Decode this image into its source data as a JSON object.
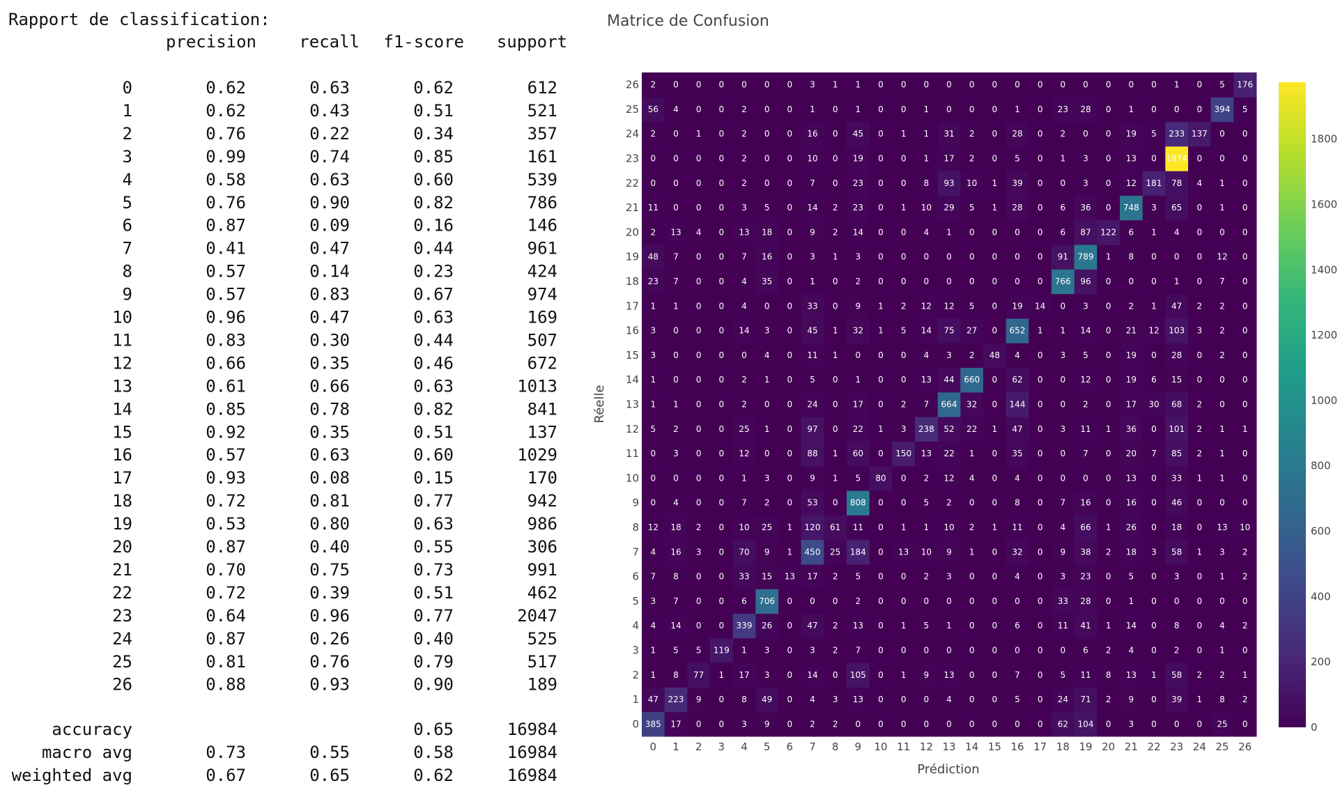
{
  "report": {
    "title": "Rapport de classification:",
    "columns": [
      "precision",
      "recall",
      "f1-score",
      "support"
    ],
    "rows": [
      [
        "0",
        "0.62",
        "0.63",
        "0.62",
        "612"
      ],
      [
        "1",
        "0.62",
        "0.43",
        "0.51",
        "521"
      ],
      [
        "2",
        "0.76",
        "0.22",
        "0.34",
        "357"
      ],
      [
        "3",
        "0.99",
        "0.74",
        "0.85",
        "161"
      ],
      [
        "4",
        "0.58",
        "0.63",
        "0.60",
        "539"
      ],
      [
        "5",
        "0.76",
        "0.90",
        "0.82",
        "786"
      ],
      [
        "6",
        "0.87",
        "0.09",
        "0.16",
        "146"
      ],
      [
        "7",
        "0.41",
        "0.47",
        "0.44",
        "961"
      ],
      [
        "8",
        "0.57",
        "0.14",
        "0.23",
        "424"
      ],
      [
        "9",
        "0.57",
        "0.83",
        "0.67",
        "974"
      ],
      [
        "10",
        "0.96",
        "0.47",
        "0.63",
        "169"
      ],
      [
        "11",
        "0.83",
        "0.30",
        "0.44",
        "507"
      ],
      [
        "12",
        "0.66",
        "0.35",
        "0.46",
        "672"
      ],
      [
        "13",
        "0.61",
        "0.66",
        "0.63",
        "1013"
      ],
      [
        "14",
        "0.85",
        "0.78",
        "0.82",
        "841"
      ],
      [
        "15",
        "0.92",
        "0.35",
        "0.51",
        "137"
      ],
      [
        "16",
        "0.57",
        "0.63",
        "0.60",
        "1029"
      ],
      [
        "17",
        "0.93",
        "0.08",
        "0.15",
        "170"
      ],
      [
        "18",
        "0.72",
        "0.81",
        "0.77",
        "942"
      ],
      [
        "19",
        "0.53",
        "0.80",
        "0.63",
        "986"
      ],
      [
        "20",
        "0.87",
        "0.40",
        "0.55",
        "306"
      ],
      [
        "21",
        "0.70",
        "0.75",
        "0.73",
        "991"
      ],
      [
        "22",
        "0.72",
        "0.39",
        "0.51",
        "462"
      ],
      [
        "23",
        "0.64",
        "0.96",
        "0.77",
        "2047"
      ],
      [
        "24",
        "0.87",
        "0.26",
        "0.40",
        "525"
      ],
      [
        "25",
        "0.81",
        "0.76",
        "0.79",
        "517"
      ],
      [
        "26",
        "0.88",
        "0.93",
        "0.90",
        "189"
      ]
    ],
    "summary": [
      [
        "accuracy",
        null,
        null,
        "0.65",
        "16984"
      ],
      [
        "macro avg",
        "0.73",
        "0.55",
        "0.58",
        "16984"
      ],
      [
        "weighted avg",
        "0.67",
        "0.65",
        "0.62",
        "16984"
      ]
    ]
  },
  "chart_data": {
    "type": "heatmap",
    "title": "Matrice de Confusion",
    "xlabel": "Prédiction",
    "ylabel": "Réelle",
    "x": [
      0,
      1,
      2,
      3,
      4,
      5,
      6,
      7,
      8,
      9,
      10,
      11,
      12,
      13,
      14,
      15,
      16,
      17,
      18,
      19,
      20,
      21,
      22,
      23,
      24,
      25,
      26
    ],
    "y": [
      0,
      1,
      2,
      3,
      4,
      5,
      6,
      7,
      8,
      9,
      10,
      11,
      12,
      13,
      14,
      15,
      16,
      17,
      18,
      19,
      20,
      21,
      22,
      23,
      24,
      25,
      26
    ],
    "z": [
      [
        385,
        17,
        0,
        0,
        3,
        9,
        0,
        2,
        2,
        0,
        0,
        0,
        0,
        0,
        0,
        0,
        0,
        0,
        62,
        104,
        0,
        3,
        0,
        0,
        0,
        25,
        0
      ],
      [
        47,
        223,
        9,
        0,
        8,
        49,
        0,
        4,
        3,
        13,
        0,
        0,
        0,
        4,
        0,
        0,
        5,
        0,
        24,
        71,
        2,
        9,
        0,
        39,
        1,
        8,
        2
      ],
      [
        1,
        8,
        77,
        1,
        17,
        3,
        0,
        14,
        0,
        105,
        0,
        1,
        9,
        13,
        0,
        0,
        7,
        0,
        5,
        11,
        8,
        13,
        1,
        58,
        2,
        2,
        1
      ],
      [
        1,
        5,
        5,
        119,
        1,
        3,
        0,
        3,
        2,
        7,
        0,
        0,
        0,
        0,
        0,
        0,
        0,
        0,
        0,
        6,
        2,
        4,
        0,
        2,
        0,
        1,
        0
      ],
      [
        4,
        14,
        0,
        0,
        339,
        26,
        0,
        47,
        2,
        13,
        0,
        1,
        5,
        1,
        0,
        0,
        6,
        0,
        11,
        41,
        1,
        14,
        0,
        8,
        0,
        4,
        2
      ],
      [
        3,
        7,
        0,
        0,
        6,
        706,
        0,
        0,
        0,
        2,
        0,
        0,
        0,
        0,
        0,
        0,
        0,
        0,
        33,
        28,
        0,
        1,
        0,
        0,
        0,
        0,
        0
      ],
      [
        7,
        8,
        0,
        0,
        33,
        15,
        13,
        17,
        2,
        5,
        0,
        0,
        2,
        3,
        0,
        0,
        4,
        0,
        3,
        23,
        0,
        5,
        0,
        3,
        0,
        1,
        2
      ],
      [
        4,
        16,
        3,
        0,
        70,
        9,
        1,
        450,
        25,
        184,
        0,
        13,
        10,
        9,
        1,
        0,
        32,
        0,
        9,
        38,
        2,
        18,
        3,
        58,
        1,
        3,
        2
      ],
      [
        12,
        18,
        2,
        0,
        10,
        25,
        1,
        120,
        61,
        11,
        0,
        1,
        1,
        10,
        2,
        1,
        11,
        0,
        4,
        66,
        1,
        26,
        0,
        18,
        0,
        13,
        10
      ],
      [
        0,
        4,
        0,
        0,
        7,
        2,
        0,
        53,
        0,
        808,
        0,
        0,
        5,
        2,
        0,
        0,
        8,
        0,
        7,
        16,
        0,
        16,
        0,
        46,
        0,
        0,
        0
      ],
      [
        0,
        0,
        0,
        0,
        1,
        3,
        0,
        9,
        1,
        5,
        80,
        0,
        2,
        12,
        4,
        0,
        4,
        0,
        0,
        0,
        0,
        13,
        0,
        33,
        1,
        1,
        0
      ],
      [
        0,
        3,
        0,
        0,
        12,
        0,
        0,
        88,
        1,
        60,
        0,
        150,
        13,
        22,
        1,
        0,
        35,
        0,
        0,
        7,
        0,
        20,
        7,
        85,
        2,
        1,
        0
      ],
      [
        5,
        2,
        0,
        0,
        25,
        1,
        0,
        97,
        0,
        22,
        1,
        3,
        238,
        52,
        22,
        1,
        47,
        0,
        3,
        11,
        1,
        36,
        0,
        101,
        2,
        1,
        1
      ],
      [
        1,
        1,
        0,
        0,
        2,
        0,
        0,
        24,
        0,
        17,
        0,
        2,
        7,
        664,
        32,
        0,
        144,
        0,
        0,
        2,
        0,
        17,
        30,
        68,
        2,
        0,
        0
      ],
      [
        1,
        0,
        0,
        0,
        2,
        1,
        0,
        5,
        0,
        1,
        0,
        0,
        13,
        44,
        660,
        0,
        62,
        0,
        0,
        12,
        0,
        19,
        6,
        15,
        0,
        0,
        0
      ],
      [
        3,
        0,
        0,
        0,
        0,
        4,
        0,
        11,
        1,
        0,
        0,
        0,
        4,
        3,
        2,
        48,
        4,
        0,
        3,
        5,
        0,
        19,
        0,
        28,
        0,
        2,
        0
      ],
      [
        3,
        0,
        0,
        0,
        14,
        3,
        0,
        45,
        1,
        32,
        1,
        5,
        14,
        75,
        27,
        0,
        652,
        1,
        1,
        14,
        0,
        21,
        12,
        103,
        3,
        2,
        0
      ],
      [
        1,
        1,
        0,
        0,
        4,
        0,
        0,
        33,
        0,
        9,
        1,
        2,
        12,
        12,
        5,
        0,
        19,
        14,
        0,
        3,
        0,
        2,
        1,
        47,
        2,
        2,
        0
      ],
      [
        23,
        7,
        0,
        0,
        4,
        35,
        0,
        1,
        0,
        2,
        0,
        0,
        0,
        0,
        0,
        0,
        0,
        0,
        766,
        96,
        0,
        0,
        0,
        1,
        0,
        7,
        0
      ],
      [
        48,
        7,
        0,
        0,
        7,
        16,
        0,
        3,
        1,
        3,
        0,
        0,
        0,
        0,
        0,
        0,
        0,
        0,
        91,
        789,
        1,
        8,
        0,
        0,
        0,
        12,
        0
      ],
      [
        2,
        13,
        4,
        0,
        13,
        18,
        0,
        9,
        2,
        14,
        0,
        0,
        4,
        1,
        0,
        0,
        0,
        0,
        6,
        87,
        122,
        6,
        1,
        4,
        0,
        0,
        0
      ],
      [
        11,
        0,
        0,
        0,
        3,
        5,
        0,
        14,
        2,
        23,
        0,
        1,
        10,
        29,
        5,
        1,
        28,
        0,
        6,
        36,
        0,
        748,
        3,
        65,
        0,
        1,
        0
      ],
      [
        0,
        0,
        0,
        0,
        2,
        0,
        0,
        7,
        0,
        23,
        0,
        0,
        8,
        93,
        10,
        1,
        39,
        0,
        0,
        3,
        0,
        12,
        181,
        78,
        4,
        1,
        0
      ],
      [
        0,
        0,
        0,
        0,
        2,
        0,
        0,
        10,
        0,
        19,
        0,
        0,
        1,
        17,
        2,
        0,
        5,
        0,
        1,
        3,
        0,
        13,
        0,
        1974,
        0,
        0,
        0
      ],
      [
        2,
        0,
        1,
        0,
        2,
        0,
        0,
        16,
        0,
        45,
        0,
        1,
        1,
        31,
        2,
        0,
        28,
        0,
        2,
        0,
        0,
        19,
        5,
        233,
        137,
        0,
        0
      ],
      [
        56,
        4,
        0,
        0,
        2,
        0,
        0,
        1,
        0,
        1,
        0,
        0,
        1,
        0,
        0,
        0,
        1,
        0,
        23,
        28,
        0,
        1,
        0,
        0,
        0,
        394,
        5
      ],
      [
        2,
        0,
        0,
        0,
        0,
        0,
        0,
        3,
        1,
        1,
        0,
        0,
        0,
        0,
        0,
        0,
        0,
        0,
        0,
        0,
        0,
        0,
        0,
        1,
        0,
        5,
        176
      ]
    ],
    "zlim": [
      0,
      1974
    ],
    "colorbar_ticks": [
      0,
      200,
      400,
      600,
      800,
      1000,
      1200,
      1400,
      1600,
      1800
    ],
    "colorscale": [
      "#440154",
      "#482878",
      "#3e4989",
      "#31688e",
      "#26828e",
      "#1f9e89",
      "#35b779",
      "#6ece58",
      "#b5de2b",
      "#fde725"
    ],
    "cell_text_color": "#ffffff"
  }
}
